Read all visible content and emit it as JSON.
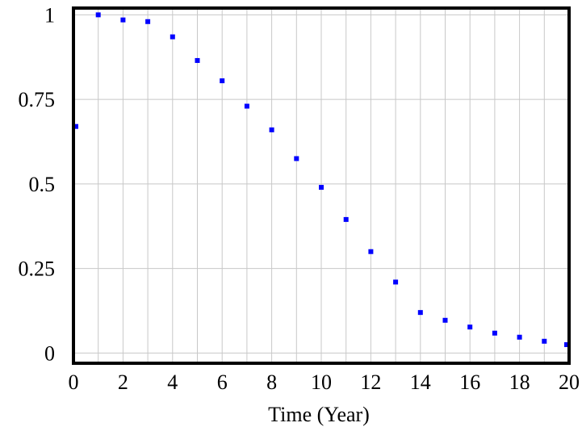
{
  "chart_data": {
    "type": "scatter",
    "xlabel": "Time (Year)",
    "ylabel": "",
    "xlim": [
      0,
      20
    ],
    "ylim": [
      -0.03,
      1.02
    ],
    "xticks": [
      0,
      2,
      4,
      6,
      8,
      10,
      12,
      14,
      16,
      18,
      20
    ],
    "yticks": [
      0,
      0.25,
      0.5,
      0.75,
      1
    ],
    "ytick_labels": [
      "0",
      "0.25",
      "0.5",
      "0.75",
      "1"
    ],
    "grid": true,
    "marker_color": "#0000ff",
    "series": [
      {
        "x": [
          0,
          1,
          2,
          3,
          4,
          5,
          6,
          7,
          8,
          9,
          10,
          11,
          12,
          13,
          14,
          15,
          16,
          17,
          18,
          19,
          20
        ],
        "values": [
          0.67,
          1.0,
          0.985,
          0.98,
          0.935,
          0.865,
          0.805,
          0.73,
          0.66,
          0.575,
          0.49,
          0.395,
          0.3,
          0.21,
          0.12,
          0.097,
          0.077,
          0.059,
          0.047,
          0.035,
          0.025
        ]
      }
    ]
  }
}
